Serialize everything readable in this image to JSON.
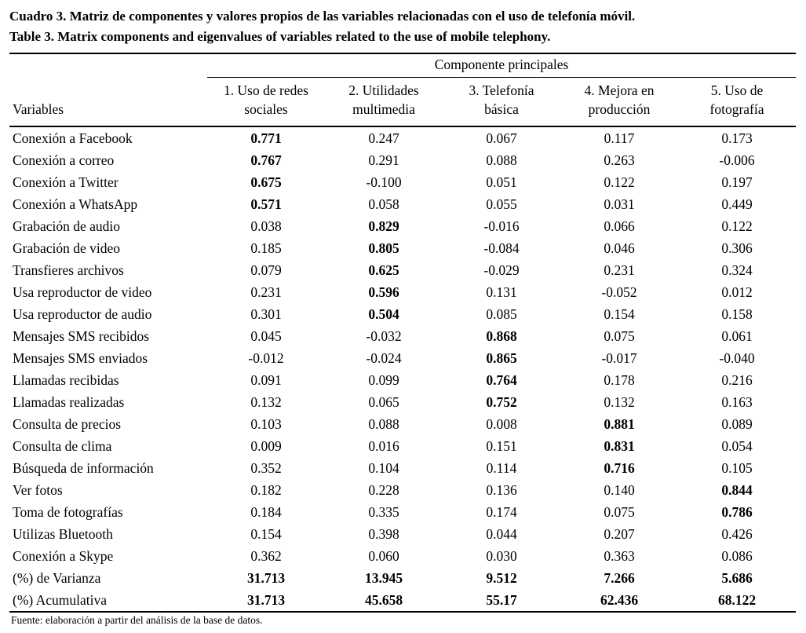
{
  "titles": {
    "spanish": "Cuadro 3. Matriz de componentes y valores propios de las variables relacionadas con el uso de telefonía móvil.",
    "english": "Table 3. Matrix components and eigenvalues of variables related to the use of mobile telephony."
  },
  "table": {
    "group_header": "Componente principales",
    "row_header_label": "Variables",
    "columns": [
      "1. Uso de redes sociales",
      "2. Utilidades multimedia",
      "3. Telefonía básica",
      "4. Mejora en producción",
      "5. Uso de fotografía"
    ],
    "rows": [
      {
        "label": "Conexión a Facebook",
        "values": [
          "0.771",
          "0.247",
          "0.067",
          "0.117",
          "0.173"
        ],
        "bold": [
          0
        ]
      },
      {
        "label": "Conexión a correo",
        "values": [
          "0.767",
          "0.291",
          "0.088",
          "0.263",
          "-0.006"
        ],
        "bold": [
          0
        ]
      },
      {
        "label": "Conexión a Twitter",
        "values": [
          "0.675",
          "-0.100",
          "0.051",
          "0.122",
          "0.197"
        ],
        "bold": [
          0
        ]
      },
      {
        "label": "Conexión a WhatsApp",
        "values": [
          "0.571",
          "0.058",
          "0.055",
          "0.031",
          "0.449"
        ],
        "bold": [
          0
        ]
      },
      {
        "label": "Grabación de audio",
        "values": [
          "0.038",
          "0.829",
          "-0.016",
          "0.066",
          "0.122"
        ],
        "bold": [
          1
        ]
      },
      {
        "label": "Grabación de video",
        "values": [
          "0.185",
          "0.805",
          "-0.084",
          "0.046",
          "0.306"
        ],
        "bold": [
          1
        ]
      },
      {
        "label": "Transfieres archivos",
        "values": [
          "0.079",
          "0.625",
          "-0.029",
          "0.231",
          "0.324"
        ],
        "bold": [
          1
        ]
      },
      {
        "label": "Usa reproductor de video",
        "values": [
          "0.231",
          "0.596",
          "0.131",
          "-0.052",
          "0.012"
        ],
        "bold": [
          1
        ]
      },
      {
        "label": "Usa reproductor de audio",
        "values": [
          "0.301",
          "0.504",
          "0.085",
          "0.154",
          "0.158"
        ],
        "bold": [
          1
        ]
      },
      {
        "label": "Mensajes SMS recibidos",
        "values": [
          "0.045",
          "-0.032",
          "0.868",
          "0.075",
          "0.061"
        ],
        "bold": [
          2
        ]
      },
      {
        "label": "Mensajes SMS enviados",
        "values": [
          "-0.012",
          "-0.024",
          "0.865",
          "-0.017",
          "-0.040"
        ],
        "bold": [
          2
        ]
      },
      {
        "label": "Llamadas recibidas",
        "values": [
          "0.091",
          "0.099",
          "0.764",
          "0.178",
          "0.216"
        ],
        "bold": [
          2
        ]
      },
      {
        "label": "Llamadas realizadas",
        "values": [
          "0.132",
          "0.065",
          "0.752",
          "0.132",
          "0.163"
        ],
        "bold": [
          2
        ]
      },
      {
        "label": "Consulta de precios",
        "values": [
          "0.103",
          "0.088",
          "0.008",
          "0.881",
          "0.089"
        ],
        "bold": [
          3
        ]
      },
      {
        "label": "Consulta de clima",
        "values": [
          "0.009",
          "0.016",
          "0.151",
          "0.831",
          "0.054"
        ],
        "bold": [
          3
        ]
      },
      {
        "label": "Búsqueda de información",
        "values": [
          "0.352",
          "0.104",
          "0.114",
          "0.716",
          "0.105"
        ],
        "bold": [
          3
        ]
      },
      {
        "label": "Ver fotos",
        "values": [
          "0.182",
          "0.228",
          "0.136",
          "0.140",
          "0.844"
        ],
        "bold": [
          4
        ]
      },
      {
        "label": "Toma de fotografías",
        "values": [
          "0.184",
          "0.335",
          "0.174",
          "0.075",
          "0.786"
        ],
        "bold": [
          4
        ]
      },
      {
        "label": "Utilizas Bluetooth",
        "values": [
          "0.154",
          "0.398",
          "0.044",
          "0.207",
          "0.426"
        ],
        "bold": []
      },
      {
        "label": "Conexión a Skype",
        "values": [
          "0.362",
          "0.060",
          "0.030",
          "0.363",
          "0.086"
        ],
        "bold": []
      },
      {
        "label": "(%) de Varianza",
        "values": [
          "31.713",
          "13.945",
          "9.512",
          "7.266",
          "5.686"
        ],
        "bold": [
          0,
          1,
          2,
          3,
          4
        ]
      },
      {
        "label": "(%) Acumulativa",
        "values": [
          "31.713",
          "45.658",
          "55.17",
          "62.436",
          "68.122"
        ],
        "bold": [
          0,
          1,
          2,
          3,
          4
        ]
      }
    ]
  },
  "footer": "Fuente: elaboración a partir del análisis de la base de datos."
}
